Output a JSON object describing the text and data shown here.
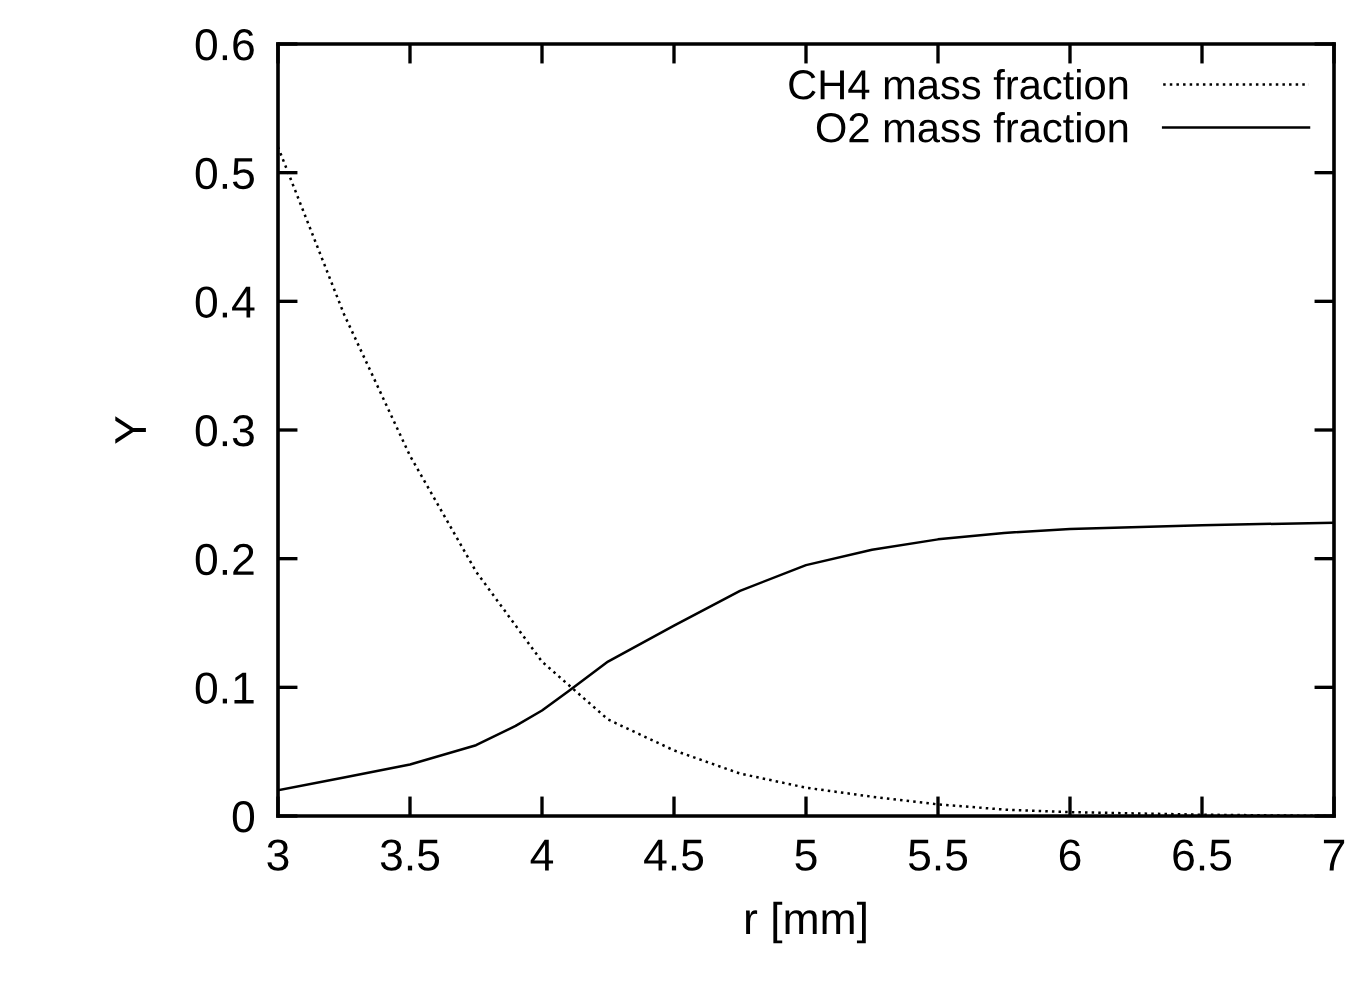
{
  "chart_data": {
    "type": "line",
    "xlabel": "r [mm]",
    "ylabel": "Y",
    "xlim": [
      3,
      7
    ],
    "ylim": [
      0,
      0.6
    ],
    "xticks": [
      3,
      3.5,
      4,
      4.5,
      5,
      5.5,
      6,
      6.5,
      7
    ],
    "yticks": [
      0,
      0.1,
      0.2,
      0.3,
      0.4,
      0.5,
      0.6
    ],
    "grid": false,
    "legend": "top right",
    "marker": "none",
    "series": [
      {
        "name": "CH4 mass fraction",
        "color": "#000000",
        "line_style": "dotted",
        "x": [
          3,
          3.25,
          3.5,
          3.75,
          4,
          4.25,
          4.5,
          4.75,
          5,
          5.25,
          5.5,
          5.75,
          6,
          6.5,
          7
        ],
        "values": [
          0.52,
          0.39,
          0.28,
          0.19,
          0.12,
          0.075,
          0.051,
          0.033,
          0.022,
          0.015,
          0.009,
          0.005,
          0.003,
          0.001,
          0.0
        ]
      },
      {
        "name": "O2 mass fraction",
        "color": "#000000",
        "line_style": "solid",
        "x": [
          3,
          3.25,
          3.5,
          3.75,
          3.9,
          4,
          4.1,
          4.25,
          4.5,
          4.75,
          5,
          5.25,
          5.5,
          5.75,
          6,
          6.5,
          7
        ],
        "values": [
          0.02,
          0.03,
          0.04,
          0.055,
          0.07,
          0.082,
          0.097,
          0.12,
          0.148,
          0.175,
          0.195,
          0.207,
          0.215,
          0.22,
          0.223,
          0.226,
          0.228
        ]
      }
    ]
  }
}
